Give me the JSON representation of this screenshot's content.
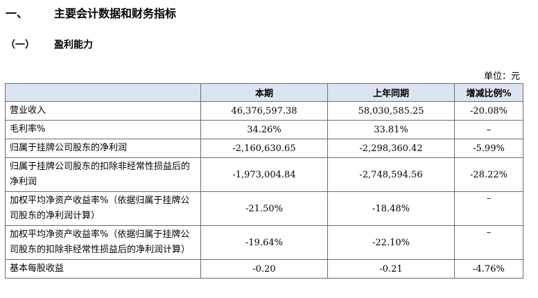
{
  "section": {
    "number": "一、",
    "title": "主要会计数据和财务指标"
  },
  "subsection": {
    "number": "（一）",
    "title": "盈利能力"
  },
  "unit_label": "单位：元",
  "table": {
    "headers": [
      "",
      "本期",
      "上年同期",
      "增减比例%"
    ],
    "rows": [
      {
        "label": "营业收入",
        "current": "46,376,597.38",
        "previous": "58,030,585.25",
        "change": "-20.08%"
      },
      {
        "label": "毛利率%",
        "current": "34.26%",
        "previous": "33.81%",
        "change": "–"
      },
      {
        "label": "归属于挂牌公司股东的净利润",
        "current": "-2,160,630.65",
        "previous": "-2,298,360.42",
        "change": "-5.99%"
      },
      {
        "label": "归属于挂牌公司股东的扣除非经常性损益后的净利润",
        "current": "-1,973,004.84",
        "previous": "-2,748,594.56",
        "change": "-28.22%"
      },
      {
        "label": "加权平均净资产收益率%（依据归属于挂牌公司股东的净利润计算）",
        "current": "-21.50%",
        "previous": "-18.48%",
        "change": "–"
      },
      {
        "label": "加权平均净资产收益率%（依据归属于挂牌公司股东的扣除非经常性损益后的净利润计算）",
        "current": "-19.64%",
        "previous": "-22.10%",
        "change": "–"
      },
      {
        "label": "基本每股收益",
        "current": "-0.20",
        "previous": "-0.21",
        "change": "-4.76%"
      }
    ]
  }
}
